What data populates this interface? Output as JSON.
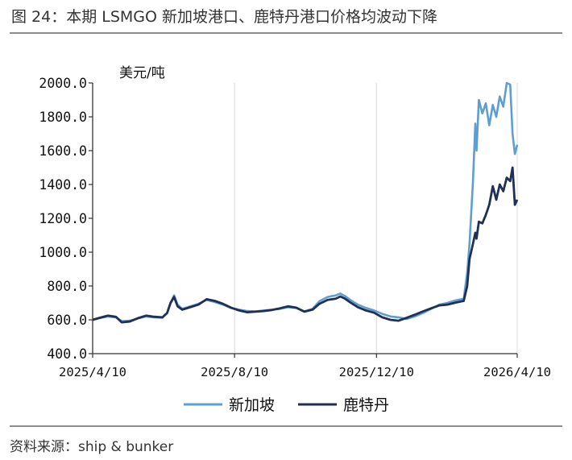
{
  "title": "图 24：本期 LSMGO 新加坡港口、鹿特丹港口价格均波动下降",
  "source": "资料来源：ship & bunker",
  "chart_data": {
    "type": "line",
    "unit_label": "美元/吨",
    "ylim": [
      400,
      2000
    ],
    "yticks": [
      "2000.0",
      "1800.0",
      "1600.0",
      "1400.0",
      "1200.0",
      "1000.0",
      "800.0",
      "600.0",
      "400.0"
    ],
    "ytick_values": [
      2000,
      1800,
      1600,
      1400,
      1200,
      1000,
      800,
      600,
      400
    ],
    "xlim": [
      "2025-04-10",
      "2026-04-10"
    ],
    "xticks": [
      "2025/4/10",
      "2025/8/10",
      "2025/12/10",
      "2026/4/10"
    ],
    "xtick_values": [
      "2025-04-10",
      "2025-08-10",
      "2025-12-10",
      "2026-04-10"
    ],
    "grid": "vertical",
    "legend_position": "bottom",
    "colors": {
      "singapore": "#5f9ed1",
      "rotterdam": "#1f2f55"
    },
    "series": [
      {
        "name": "新加坡",
        "color": "#5f9ed1",
        "points": [
          [
            "2025-04-10",
            600
          ],
          [
            "2025-04-16",
            610
          ],
          [
            "2025-04-23",
            620
          ],
          [
            "2025-04-30",
            615
          ],
          [
            "2025-05-05",
            592
          ],
          [
            "2025-05-12",
            595
          ],
          [
            "2025-05-19",
            608
          ],
          [
            "2025-05-26",
            620
          ],
          [
            "2025-06-02",
            615
          ],
          [
            "2025-06-09",
            612
          ],
          [
            "2025-06-13",
            640
          ],
          [
            "2025-06-16",
            700
          ],
          [
            "2025-06-19",
            745
          ],
          [
            "2025-06-22",
            690
          ],
          [
            "2025-06-26",
            665
          ],
          [
            "2025-07-03",
            680
          ],
          [
            "2025-07-10",
            695
          ],
          [
            "2025-07-17",
            718
          ],
          [
            "2025-07-24",
            705
          ],
          [
            "2025-07-31",
            690
          ],
          [
            "2025-08-07",
            670
          ],
          [
            "2025-08-14",
            660
          ],
          [
            "2025-08-21",
            652
          ],
          [
            "2025-08-28",
            650
          ],
          [
            "2025-09-04",
            655
          ],
          [
            "2025-09-11",
            660
          ],
          [
            "2025-09-18",
            665
          ],
          [
            "2025-09-25",
            675
          ],
          [
            "2025-10-02",
            670
          ],
          [
            "2025-10-09",
            650
          ],
          [
            "2025-10-16",
            665
          ],
          [
            "2025-10-22",
            710
          ],
          [
            "2025-10-29",
            735
          ],
          [
            "2025-11-05",
            745
          ],
          [
            "2025-11-09",
            755
          ],
          [
            "2025-11-13",
            740
          ],
          [
            "2025-11-17",
            720
          ],
          [
            "2025-11-24",
            690
          ],
          [
            "2025-12-01",
            670
          ],
          [
            "2025-12-08",
            655
          ],
          [
            "2025-12-15",
            635
          ],
          [
            "2025-12-22",
            620
          ],
          [
            "2025-12-29",
            615
          ],
          [
            "2026-01-05",
            605
          ],
          [
            "2026-01-12",
            620
          ],
          [
            "2026-01-19",
            640
          ],
          [
            "2026-01-26",
            665
          ],
          [
            "2026-02-02",
            690
          ],
          [
            "2026-02-09",
            700
          ],
          [
            "2026-02-16",
            715
          ],
          [
            "2026-02-23",
            725
          ],
          [
            "2026-02-26",
            880
          ],
          [
            "2026-02-28",
            1050
          ],
          [
            "2026-03-03",
            1420
          ],
          [
            "2026-03-05",
            1760
          ],
          [
            "2026-03-06",
            1600
          ],
          [
            "2026-03-08",
            1900
          ],
          [
            "2026-03-11",
            1820
          ],
          [
            "2026-03-14",
            1880
          ],
          [
            "2026-03-17",
            1750
          ],
          [
            "2026-03-20",
            1870
          ],
          [
            "2026-03-23",
            1800
          ],
          [
            "2026-03-26",
            1920
          ],
          [
            "2026-03-29",
            1860
          ],
          [
            "2026-04-01",
            2000
          ],
          [
            "2026-04-04",
            1990
          ],
          [
            "2026-04-06",
            1700
          ],
          [
            "2026-04-08",
            1580
          ],
          [
            "2026-04-10",
            1635
          ]
        ]
      },
      {
        "name": "鹿特丹",
        "color": "#1f2f55",
        "points": [
          [
            "2025-04-10",
            600
          ],
          [
            "2025-04-16",
            612
          ],
          [
            "2025-04-23",
            625
          ],
          [
            "2025-04-30",
            618
          ],
          [
            "2025-05-05",
            585
          ],
          [
            "2025-05-12",
            590
          ],
          [
            "2025-05-19",
            610
          ],
          [
            "2025-05-26",
            625
          ],
          [
            "2025-06-02",
            618
          ],
          [
            "2025-06-09",
            615
          ],
          [
            "2025-06-13",
            640
          ],
          [
            "2025-06-16",
            700
          ],
          [
            "2025-06-19",
            735
          ],
          [
            "2025-06-22",
            680
          ],
          [
            "2025-06-26",
            660
          ],
          [
            "2025-07-03",
            675
          ],
          [
            "2025-07-10",
            690
          ],
          [
            "2025-07-17",
            722
          ],
          [
            "2025-07-24",
            712
          ],
          [
            "2025-07-31",
            695
          ],
          [
            "2025-08-07",
            672
          ],
          [
            "2025-08-14",
            655
          ],
          [
            "2025-08-21",
            645
          ],
          [
            "2025-08-28",
            648
          ],
          [
            "2025-09-04",
            652
          ],
          [
            "2025-09-11",
            658
          ],
          [
            "2025-09-18",
            668
          ],
          [
            "2025-09-25",
            680
          ],
          [
            "2025-10-02",
            672
          ],
          [
            "2025-10-09",
            648
          ],
          [
            "2025-10-16",
            660
          ],
          [
            "2025-10-22",
            695
          ],
          [
            "2025-10-29",
            718
          ],
          [
            "2025-11-05",
            725
          ],
          [
            "2025-11-09",
            738
          ],
          [
            "2025-11-13",
            725
          ],
          [
            "2025-11-17",
            705
          ],
          [
            "2025-11-24",
            675
          ],
          [
            "2025-12-01",
            655
          ],
          [
            "2025-12-08",
            642
          ],
          [
            "2025-12-15",
            615
          ],
          [
            "2025-12-22",
            600
          ],
          [
            "2025-12-29",
            595
          ],
          [
            "2026-01-05",
            612
          ],
          [
            "2026-01-12",
            630
          ],
          [
            "2026-01-19",
            650
          ],
          [
            "2026-01-26",
            668
          ],
          [
            "2026-02-02",
            685
          ],
          [
            "2026-02-09",
            690
          ],
          [
            "2026-02-16",
            702
          ],
          [
            "2026-02-23",
            712
          ],
          [
            "2026-02-26",
            800
          ],
          [
            "2026-02-28",
            960
          ],
          [
            "2026-03-03",
            1050
          ],
          [
            "2026-03-05",
            1115
          ],
          [
            "2026-03-06",
            1080
          ],
          [
            "2026-03-08",
            1180
          ],
          [
            "2026-03-11",
            1170
          ],
          [
            "2026-03-14",
            1220
          ],
          [
            "2026-03-17",
            1280
          ],
          [
            "2026-03-20",
            1390
          ],
          [
            "2026-03-23",
            1310
          ],
          [
            "2026-03-26",
            1400
          ],
          [
            "2026-03-29",
            1360
          ],
          [
            "2026-04-01",
            1440
          ],
          [
            "2026-04-04",
            1420
          ],
          [
            "2026-04-06",
            1500
          ],
          [
            "2026-04-08",
            1280
          ],
          [
            "2026-04-10",
            1310
          ]
        ]
      }
    ]
  }
}
